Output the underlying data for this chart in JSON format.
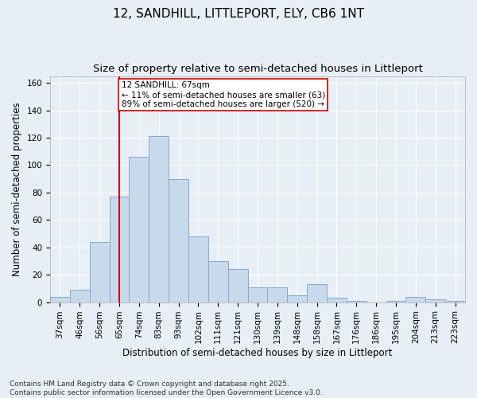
{
  "title": "12, SANDHILL, LITTLEPORT, ELY, CB6 1NT",
  "subtitle": "Size of property relative to semi-detached houses in Littleport",
  "xlabel": "Distribution of semi-detached houses by size in Littleport",
  "ylabel": "Number of semi-detached properties",
  "categories": [
    "37sqm",
    "46sqm",
    "56sqm",
    "65sqm",
    "74sqm",
    "83sqm",
    "93sqm",
    "102sqm",
    "111sqm",
    "121sqm",
    "130sqm",
    "139sqm",
    "148sqm",
    "158sqm",
    "167sqm",
    "176sqm",
    "186sqm",
    "195sqm",
    "204sqm",
    "213sqm",
    "223sqm"
  ],
  "values": [
    4,
    9,
    44,
    77,
    106,
    121,
    90,
    48,
    30,
    24,
    11,
    11,
    5,
    13,
    3,
    1,
    0,
    1,
    4,
    2,
    1
  ],
  "bar_color": "#c8d9ec",
  "bar_edge_color": "#85aace",
  "vertical_line_x": 3,
  "vertical_line_color": "#cc0000",
  "annotation_text": "12 SANDHILL: 67sqm\n← 11% of semi-detached houses are smaller (63)\n89% of semi-detached houses are larger (520) →",
  "annotation_box_facecolor": "#ffffff",
  "annotation_box_edgecolor": "#cc0000",
  "footnote": "Contains HM Land Registry data © Crown copyright and database right 2025.\nContains public sector information licensed under the Open Government Licence v3.0.",
  "ylim": [
    0,
    165
  ],
  "yticks": [
    0,
    20,
    40,
    60,
    80,
    100,
    120,
    140,
    160
  ],
  "background_color": "#e8eef5",
  "plot_bg_color": "#e8eef5",
  "grid_color": "#ffffff",
  "title_fontsize": 11,
  "subtitle_fontsize": 9.5,
  "axis_label_fontsize": 8.5,
  "tick_fontsize": 7.5,
  "footnote_fontsize": 6.5
}
